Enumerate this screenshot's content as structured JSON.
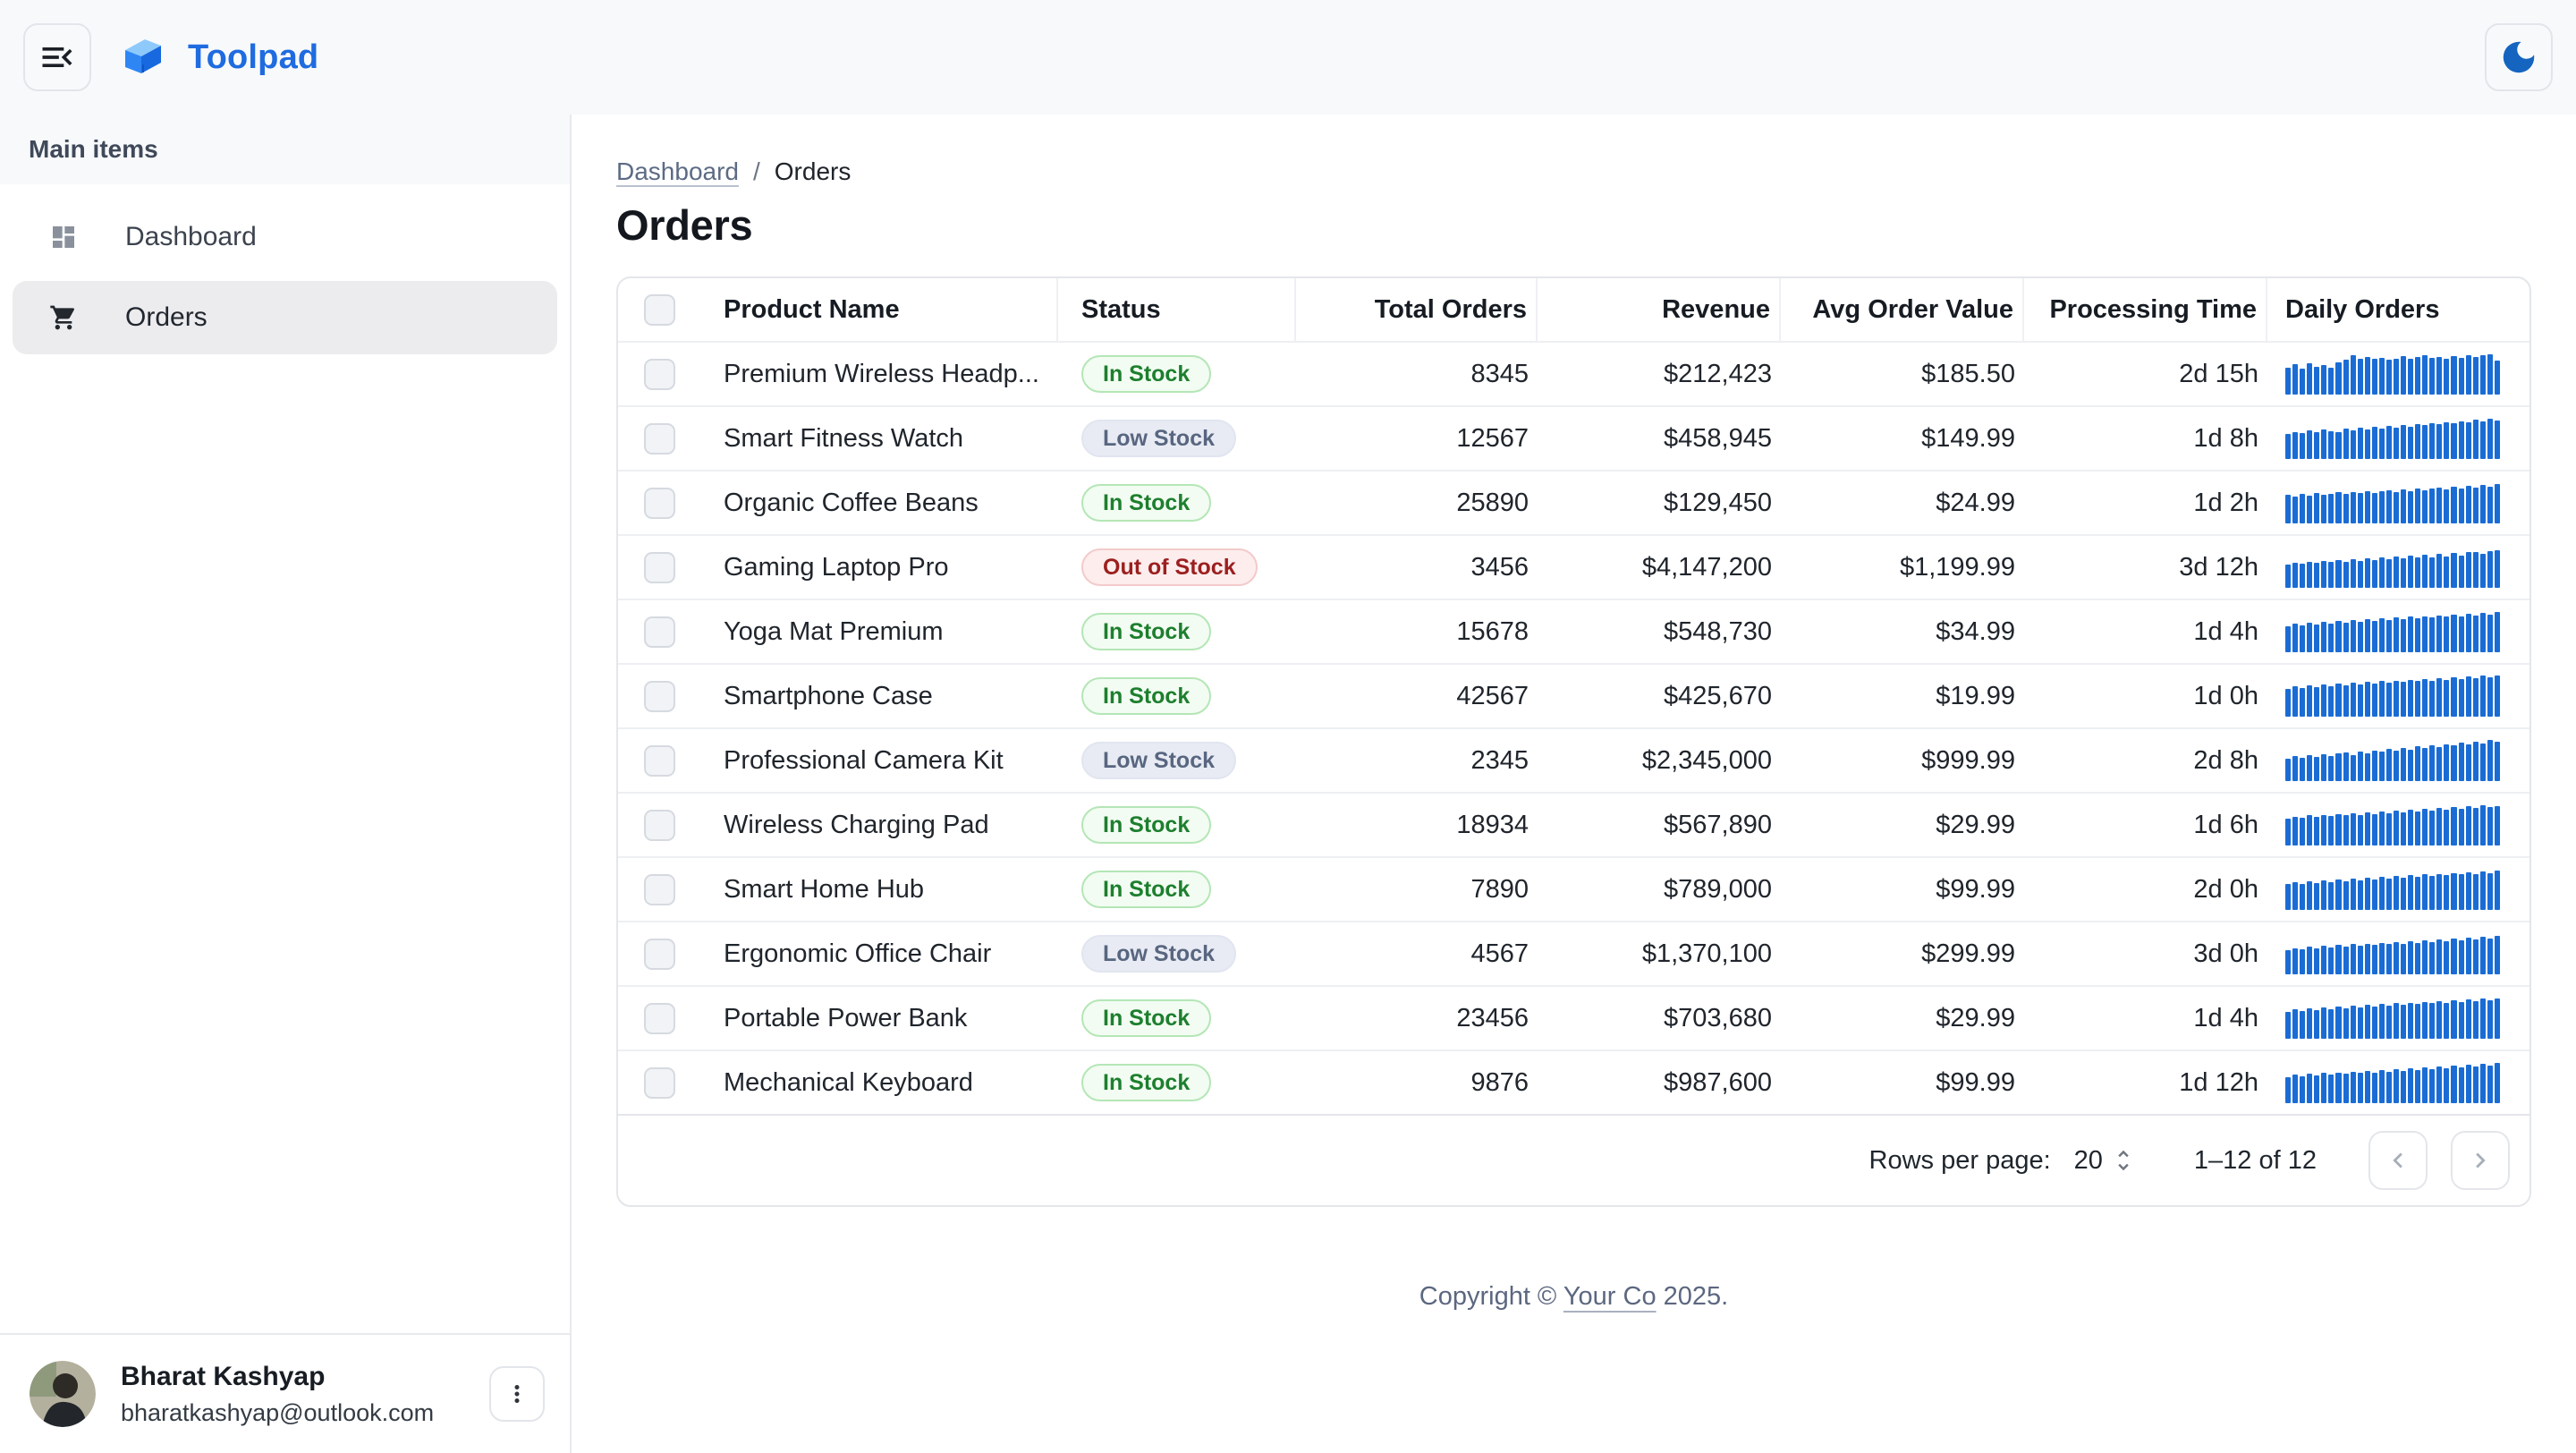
{
  "header": {
    "brand": "Toolpad"
  },
  "colors": {
    "brand_blue": "#1f6be0",
    "moon_blue": "#1565c0",
    "spark_blue": "#1a6cd4",
    "in_stock_green": "#1d7f2e",
    "low_stock_slate": "#586680",
    "out_of_stock_red": "#9c1f1f",
    "topbar_bg": "#f8f9fb",
    "selected_item_bg": "#ececef"
  },
  "sidebar": {
    "section_label": "Main items",
    "items": [
      {
        "label": "Dashboard",
        "icon": "dashboard-icon",
        "selected": false
      },
      {
        "label": "Orders",
        "icon": "cart-icon",
        "selected": true
      }
    ],
    "user": {
      "name": "Bharat Kashyap",
      "email": "bharatkashyap@outlook.com"
    }
  },
  "breadcrumb": {
    "parent": "Dashboard",
    "separator": "/",
    "current": "Orders"
  },
  "page": {
    "title": "Orders"
  },
  "table": {
    "columns": [
      {
        "label": "Product Name"
      },
      {
        "label": "Status"
      },
      {
        "label": "Total Orders"
      },
      {
        "label": "Revenue"
      },
      {
        "label": "Avg Order Value"
      },
      {
        "label": "Processing Time"
      },
      {
        "label": "Daily Orders"
      }
    ],
    "rows": [
      {
        "name": "Premium Wireless Headp...",
        "status": "In Stock",
        "status_variant": "in",
        "total_orders": "8345",
        "revenue": "$212,423",
        "avg_order_value": "$185.50",
        "processing_time": "2d 15h",
        "spark": [
          66,
          73,
          62,
          76,
          68,
          72,
          65,
          78,
          85,
          95,
          88,
          92,
          86,
          90,
          84,
          88,
          93,
          87,
          91,
          95,
          89,
          92,
          88,
          94,
          90,
          96,
          91,
          95,
          97,
          83
        ]
      },
      {
        "name": "Smart Fitness Watch",
        "status": "Low Stock",
        "status_variant": "low",
        "total_orders": "12567",
        "revenue": "$458,945",
        "avg_order_value": "$149.99",
        "processing_time": "1d 8h",
        "spark": [
          60,
          66,
          63,
          70,
          65,
          72,
          68,
          66,
          73,
          70,
          76,
          72,
          78,
          74,
          80,
          77,
          83,
          79,
          85,
          82,
          88,
          84,
          90,
          86,
          92,
          89,
          95,
          91,
          97,
          94
        ]
      },
      {
        "name": "Organic Coffee Beans",
        "status": "In Stock",
        "status_variant": "in",
        "total_orders": "25890",
        "revenue": "$129,450",
        "avg_order_value": "$24.99",
        "processing_time": "1d 2h",
        "spark": [
          70,
          66,
          72,
          68,
          74,
          70,
          72,
          76,
          71,
          77,
          73,
          79,
          75,
          78,
          81,
          77,
          83,
          79,
          85,
          81,
          84,
          87,
          83,
          89,
          85,
          91,
          87,
          93,
          89,
          95
        ]
      },
      {
        "name": "Gaming Laptop Pro",
        "status": "Out of Stock",
        "status_variant": "out",
        "total_orders": "3456",
        "revenue": "$4,147,200",
        "avg_order_value": "$1,199.99",
        "processing_time": "3d 12h",
        "spark": [
          56,
          61,
          58,
          64,
          60,
          66,
          62,
          68,
          63,
          70,
          65,
          72,
          67,
          74,
          69,
          76,
          71,
          78,
          73,
          80,
          75,
          82,
          77,
          84,
          79,
          86,
          88,
          83,
          90,
          92
        ]
      },
      {
        "name": "Yoga Mat Premium",
        "status": "In Stock",
        "status_variant": "in",
        "total_orders": "15678",
        "revenue": "$548,730",
        "avg_order_value": "$34.99",
        "processing_time": "1d 4h",
        "spark": [
          64,
          70,
          66,
          72,
          68,
          74,
          70,
          76,
          72,
          78,
          74,
          80,
          76,
          82,
          78,
          84,
          80,
          86,
          82,
          88,
          84,
          90,
          86,
          92,
          88,
          94,
          90,
          96,
          92,
          98
        ]
      },
      {
        "name": "Smartphone Case",
        "status": "In Stock",
        "status_variant": "in",
        "total_orders": "42567",
        "revenue": "$425,670",
        "avg_order_value": "$19.99",
        "processing_time": "1d 0h",
        "spark": [
          68,
          74,
          70,
          76,
          72,
          78,
          74,
          80,
          76,
          82,
          78,
          84,
          80,
          86,
          82,
          88,
          84,
          90,
          86,
          92,
          88,
          94,
          90,
          96,
          92,
          98,
          94,
          99,
          96,
          100
        ]
      },
      {
        "name": "Professional Camera Kit",
        "status": "Low Stock",
        "status_variant": "low",
        "total_orders": "2345",
        "revenue": "$2,345,000",
        "avg_order_value": "$999.99",
        "processing_time": "2d 8h",
        "spark": [
          55,
          60,
          57,
          63,
          59,
          65,
          61,
          67,
          70,
          64,
          72,
          68,
          75,
          71,
          78,
          74,
          81,
          77,
          84,
          80,
          87,
          83,
          90,
          86,
          93,
          89,
          96,
          92,
          99,
          95
        ]
      },
      {
        "name": "Wireless Charging Pad",
        "status": "In Stock",
        "status_variant": "in",
        "total_orders": "18934",
        "revenue": "$567,890",
        "avg_order_value": "$29.99",
        "processing_time": "1d 6h",
        "spark": [
          65,
          70,
          67,
          73,
          69,
          75,
          71,
          77,
          73,
          79,
          75,
          81,
          77,
          83,
          79,
          85,
          81,
          87,
          83,
          89,
          85,
          91,
          87,
          93,
          89,
          95,
          91,
          97,
          93,
          95
        ]
      },
      {
        "name": "Smart Home Hub",
        "status": "In Stock",
        "status_variant": "in",
        "total_orders": "7890",
        "revenue": "$789,000",
        "avg_order_value": "$99.99",
        "processing_time": "2d 0h",
        "spark": [
          62,
          68,
          64,
          70,
          66,
          72,
          68,
          74,
          70,
          76,
          72,
          78,
          74,
          80,
          76,
          82,
          78,
          84,
          80,
          86,
          82,
          88,
          84,
          90,
          86,
          92,
          88,
          94,
          90,
          96
        ]
      },
      {
        "name": "Ergonomic Office Chair",
        "status": "Low Stock",
        "status_variant": "low",
        "total_orders": "4567",
        "revenue": "$1,370,100",
        "avg_order_value": "$299.99",
        "processing_time": "3d 0h",
        "spark": [
          58,
          64,
          60,
          67,
          63,
          69,
          65,
          71,
          67,
          73,
          69,
          75,
          71,
          77,
          73,
          79,
          75,
          81,
          77,
          83,
          79,
          85,
          81,
          87,
          83,
          89,
          85,
          92,
          88,
          94
        ]
      },
      {
        "name": "Portable Power Bank",
        "status": "In Stock",
        "status_variant": "in",
        "total_orders": "23456",
        "revenue": "$703,680",
        "avg_order_value": "$29.99",
        "processing_time": "1d 4h",
        "spark": [
          66,
          71,
          68,
          74,
          70,
          76,
          72,
          78,
          74,
          80,
          76,
          82,
          78,
          84,
          80,
          86,
          82,
          88,
          84,
          90,
          86,
          92,
          88,
          94,
          90,
          96,
          92,
          97,
          94,
          98
        ]
      },
      {
        "name": "Mechanical Keyboard",
        "status": "In Stock",
        "status_variant": "in",
        "total_orders": "9876",
        "revenue": "$987,600",
        "avg_order_value": "$99.99",
        "processing_time": "1d 12h",
        "spark": [
          63,
          69,
          65,
          71,
          67,
          73,
          69,
          75,
          71,
          77,
          73,
          79,
          75,
          81,
          77,
          83,
          79,
          85,
          81,
          87,
          83,
          89,
          85,
          91,
          87,
          93,
          89,
          95,
          91,
          97
        ]
      }
    ]
  },
  "pagination": {
    "rows_per_page_label": "Rows per page:",
    "rows_per_page_value": "20",
    "range": "1–12 of 12"
  },
  "footer": {
    "prefix": "Copyright © ",
    "link": "Your Co",
    "suffix": " 2025."
  }
}
